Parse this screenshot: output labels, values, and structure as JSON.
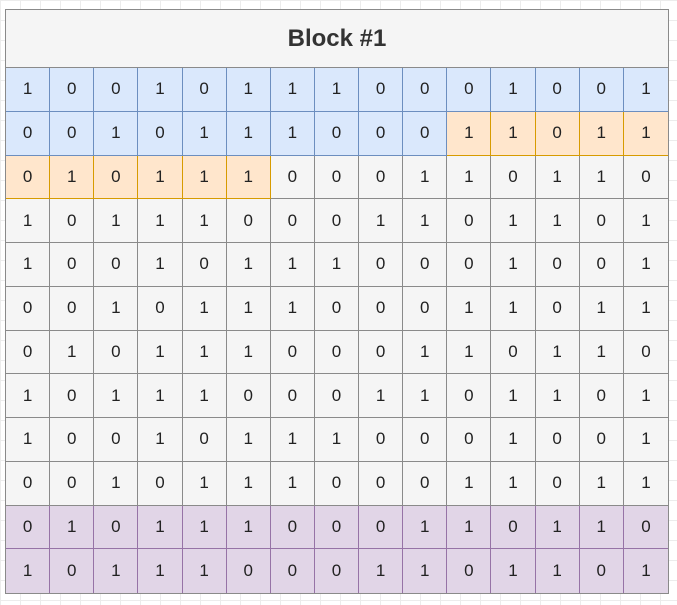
{
  "block": {
    "title": "Block #1",
    "colors": {
      "default_fill": "#f5f5f5",
      "blue_fill": "#dae8fc",
      "orange_fill": "#ffe6cc",
      "purple_fill": "#e1d5e7"
    },
    "rows": [
      [
        "1",
        "0",
        "0",
        "1",
        "0",
        "1",
        "1",
        "1",
        "0",
        "0",
        "0",
        "1",
        "0",
        "0",
        "1"
      ],
      [
        "0",
        "0",
        "1",
        "0",
        "1",
        "1",
        "1",
        "0",
        "0",
        "0",
        "1",
        "1",
        "0",
        "1",
        "1"
      ],
      [
        "0",
        "1",
        "0",
        "1",
        "1",
        "1",
        "0",
        "0",
        "0",
        "1",
        "1",
        "0",
        "1",
        "1",
        "0"
      ],
      [
        "1",
        "0",
        "1",
        "1",
        "1",
        "0",
        "0",
        "0",
        "1",
        "1",
        "0",
        "1",
        "1",
        "0",
        "1"
      ],
      [
        "1",
        "0",
        "0",
        "1",
        "0",
        "1",
        "1",
        "1",
        "0",
        "0",
        "0",
        "1",
        "0",
        "0",
        "1"
      ],
      [
        "0",
        "0",
        "1",
        "0",
        "1",
        "1",
        "1",
        "0",
        "0",
        "0",
        "1",
        "1",
        "0",
        "1",
        "1"
      ],
      [
        "0",
        "1",
        "0",
        "1",
        "1",
        "1",
        "0",
        "0",
        "0",
        "1",
        "1",
        "0",
        "1",
        "1",
        "0"
      ],
      [
        "1",
        "0",
        "1",
        "1",
        "1",
        "0",
        "0",
        "0",
        "1",
        "1",
        "0",
        "1",
        "1",
        "0",
        "1"
      ],
      [
        "1",
        "0",
        "0",
        "1",
        "0",
        "1",
        "1",
        "1",
        "0",
        "0",
        "0",
        "1",
        "0",
        "0",
        "1"
      ],
      [
        "0",
        "0",
        "1",
        "0",
        "1",
        "1",
        "1",
        "0",
        "0",
        "0",
        "1",
        "1",
        "0",
        "1",
        "1"
      ],
      [
        "0",
        "1",
        "0",
        "1",
        "1",
        "1",
        "0",
        "0",
        "0",
        "1",
        "1",
        "0",
        "1",
        "1",
        "0"
      ],
      [
        "1",
        "0",
        "1",
        "1",
        "1",
        "0",
        "0",
        "0",
        "1",
        "1",
        "0",
        "1",
        "1",
        "0",
        "1"
      ]
    ],
    "highlights": [
      {
        "color": "blue",
        "row": 0,
        "from": 0,
        "to": 14
      },
      {
        "color": "blue",
        "row": 1,
        "from": 0,
        "to": 9
      },
      {
        "color": "orange",
        "row": 1,
        "from": 10,
        "to": 14
      },
      {
        "color": "orange",
        "row": 2,
        "from": 0,
        "to": 5
      },
      {
        "color": "purple",
        "row": 10,
        "from": 0,
        "to": 14
      },
      {
        "color": "purple",
        "row": 11,
        "from": 0,
        "to": 14
      }
    ]
  }
}
